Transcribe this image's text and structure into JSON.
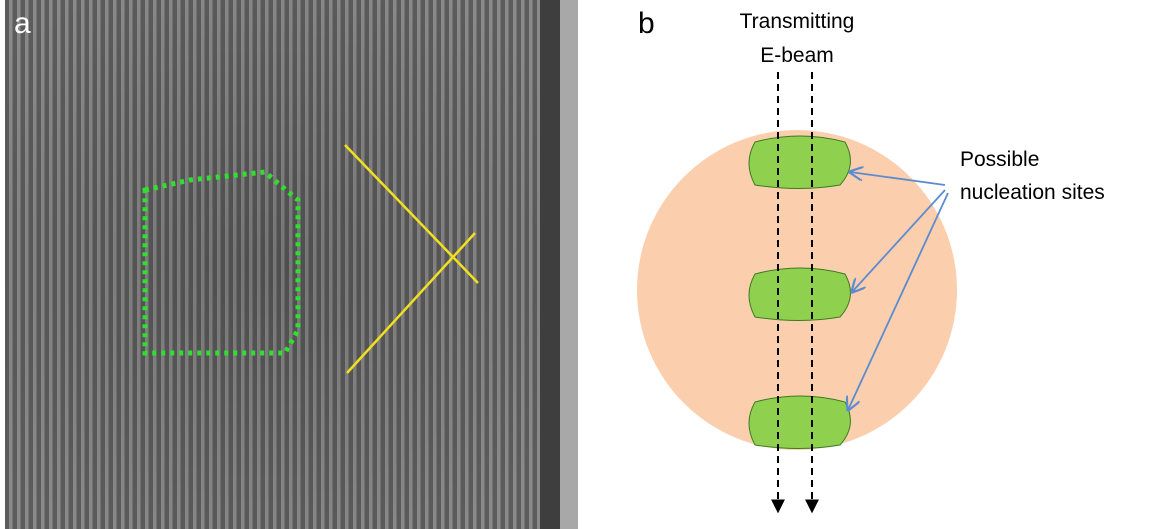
{
  "panel_a": {
    "label": "a"
  },
  "panel_b": {
    "label": "b",
    "beam_label": {
      "lines": [
        "Transmitting",
        "E-beam"
      ]
    },
    "annotation": {
      "lines": [
        "Possible",
        "nucleation sites"
      ]
    }
  }
}
